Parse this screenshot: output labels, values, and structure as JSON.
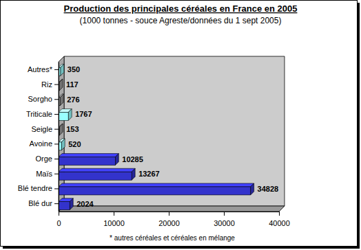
{
  "chart_data": {
    "type": "bar",
    "title": "Production des principales céréales en France en 2005",
    "subtitle": "(1000 tonnes - souce Agreste/données du 1 sept 2005)",
    "annotations": [
      "* autres céréales et céréales en mélange"
    ],
    "orientation": "horizontal",
    "categories": [
      "Blé dur",
      "Blé tendre",
      "Maïs",
      "Orge",
      "Avoine",
      "Seigle",
      "Triticale",
      "Sorgho",
      "Riz",
      "Autres*"
    ],
    "values": [
      2024,
      34828,
      13267,
      10285,
      520,
      153,
      1767,
      276,
      117,
      350
    ],
    "colors": [
      "#3333cc",
      "#3333cc",
      "#3333cc",
      "#3333cc",
      "#99ffff",
      "#999999",
      "#99ffff",
      "#999999",
      "#999999",
      "#99ffff"
    ],
    "xlim": [
      0,
      40000
    ],
    "xticks": [
      0,
      10000,
      20000,
      30000,
      40000
    ],
    "data_labels": true,
    "grid": false
  }
}
